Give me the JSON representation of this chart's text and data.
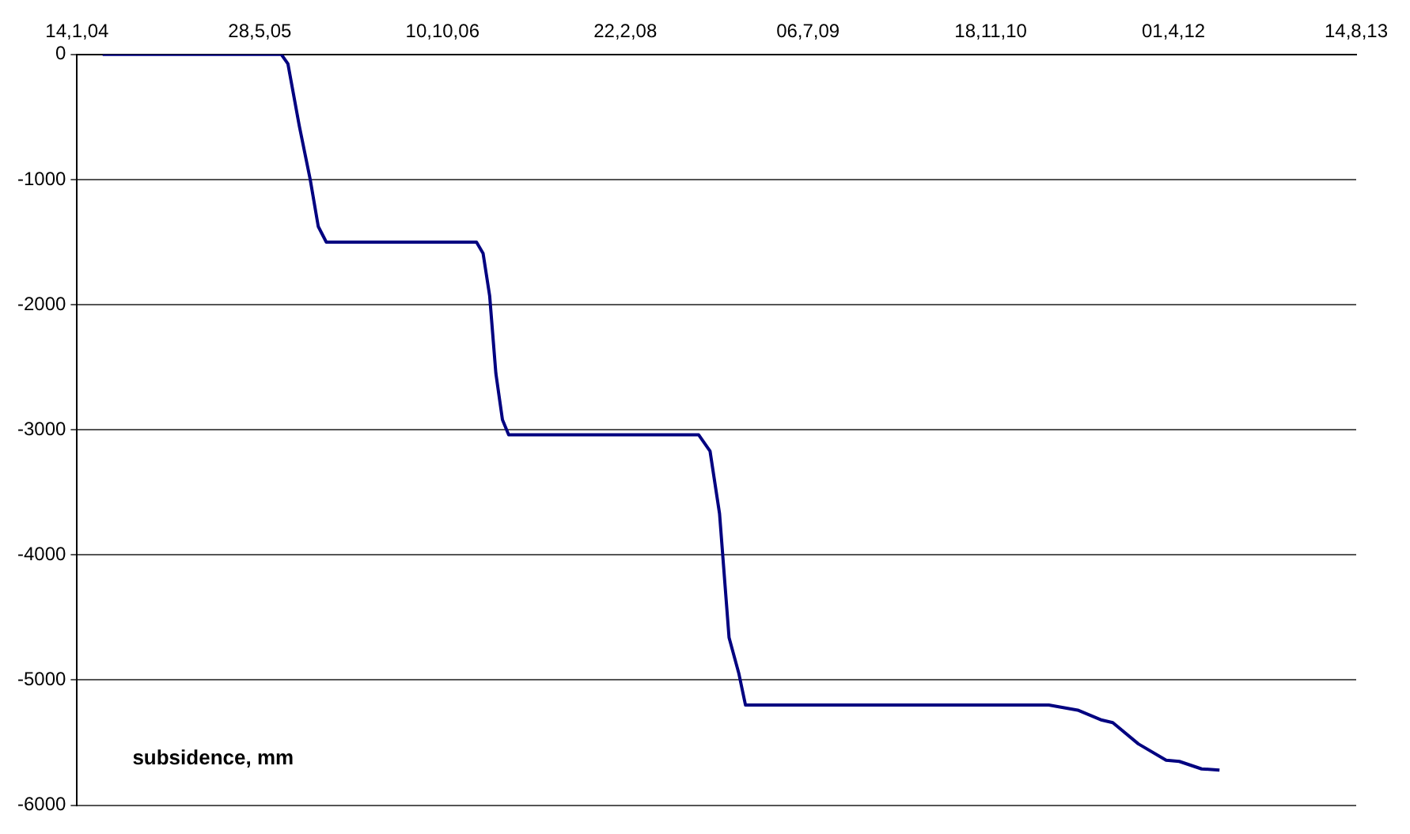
{
  "chart_data": {
    "type": "line",
    "annotations": [
      "subsidence, mm"
    ],
    "x": [
      "2004-03-24",
      "2005-07-26",
      "2005-08-13",
      "2005-09-13",
      "2005-10-13",
      "2005-11-04",
      "2005-11-26",
      "2007-01-11",
      "2007-01-29",
      "2007-02-16",
      "2007-03-05",
      "2007-03-23",
      "2007-04-09",
      "2008-09-10",
      "2008-10-11",
      "2008-11-06",
      "2008-12-02",
      "2008-12-29",
      "2009-01-16",
      "2011-04-26",
      "2011-07-14",
      "2011-09-18",
      "2011-10-18",
      "2011-12-27",
      "2012-03-12",
      "2012-04-17",
      "2012-06-17",
      "2012-08-05"
    ],
    "series": [
      {
        "color": "#000080",
        "values": [
          0,
          0,
          -75,
          -570,
          -1000,
          -1375,
          -1500,
          -1500,
          -1590,
          -1930,
          -2550,
          -2920,
          -3040,
          -3040,
          -3170,
          -3670,
          -4660,
          -4950,
          -5200,
          -5200,
          -5240,
          -5320,
          -5340,
          -5510,
          -5640,
          -5650,
          -5710,
          -5720
        ]
      }
    ],
    "xlim": [
      "2004-01-14",
      "2013-08-14"
    ],
    "xticks": [
      {
        "value": "2004-01-14",
        "label": "14,1,04"
      },
      {
        "value": "2005-05-28",
        "label": "28,5,05"
      },
      {
        "value": "2006-10-10",
        "label": "10,10,06"
      },
      {
        "value": "2008-02-22",
        "label": "22,2,08"
      },
      {
        "value": "2009-07-06",
        "label": "06,7,09"
      },
      {
        "value": "2010-11-18",
        "label": "18,11,10"
      },
      {
        "value": "2012-04-01",
        "label": "01,4,12"
      },
      {
        "value": "2013-08-14",
        "label": "14,8,13"
      }
    ],
    "ylim": [
      -6000,
      0
    ],
    "yticks": [
      -6000,
      -5000,
      -4000,
      -3000,
      -2000,
      -1000,
      0
    ],
    "grid": "y",
    "legend": false,
    "marker": "none",
    "line_style": "solid"
  }
}
